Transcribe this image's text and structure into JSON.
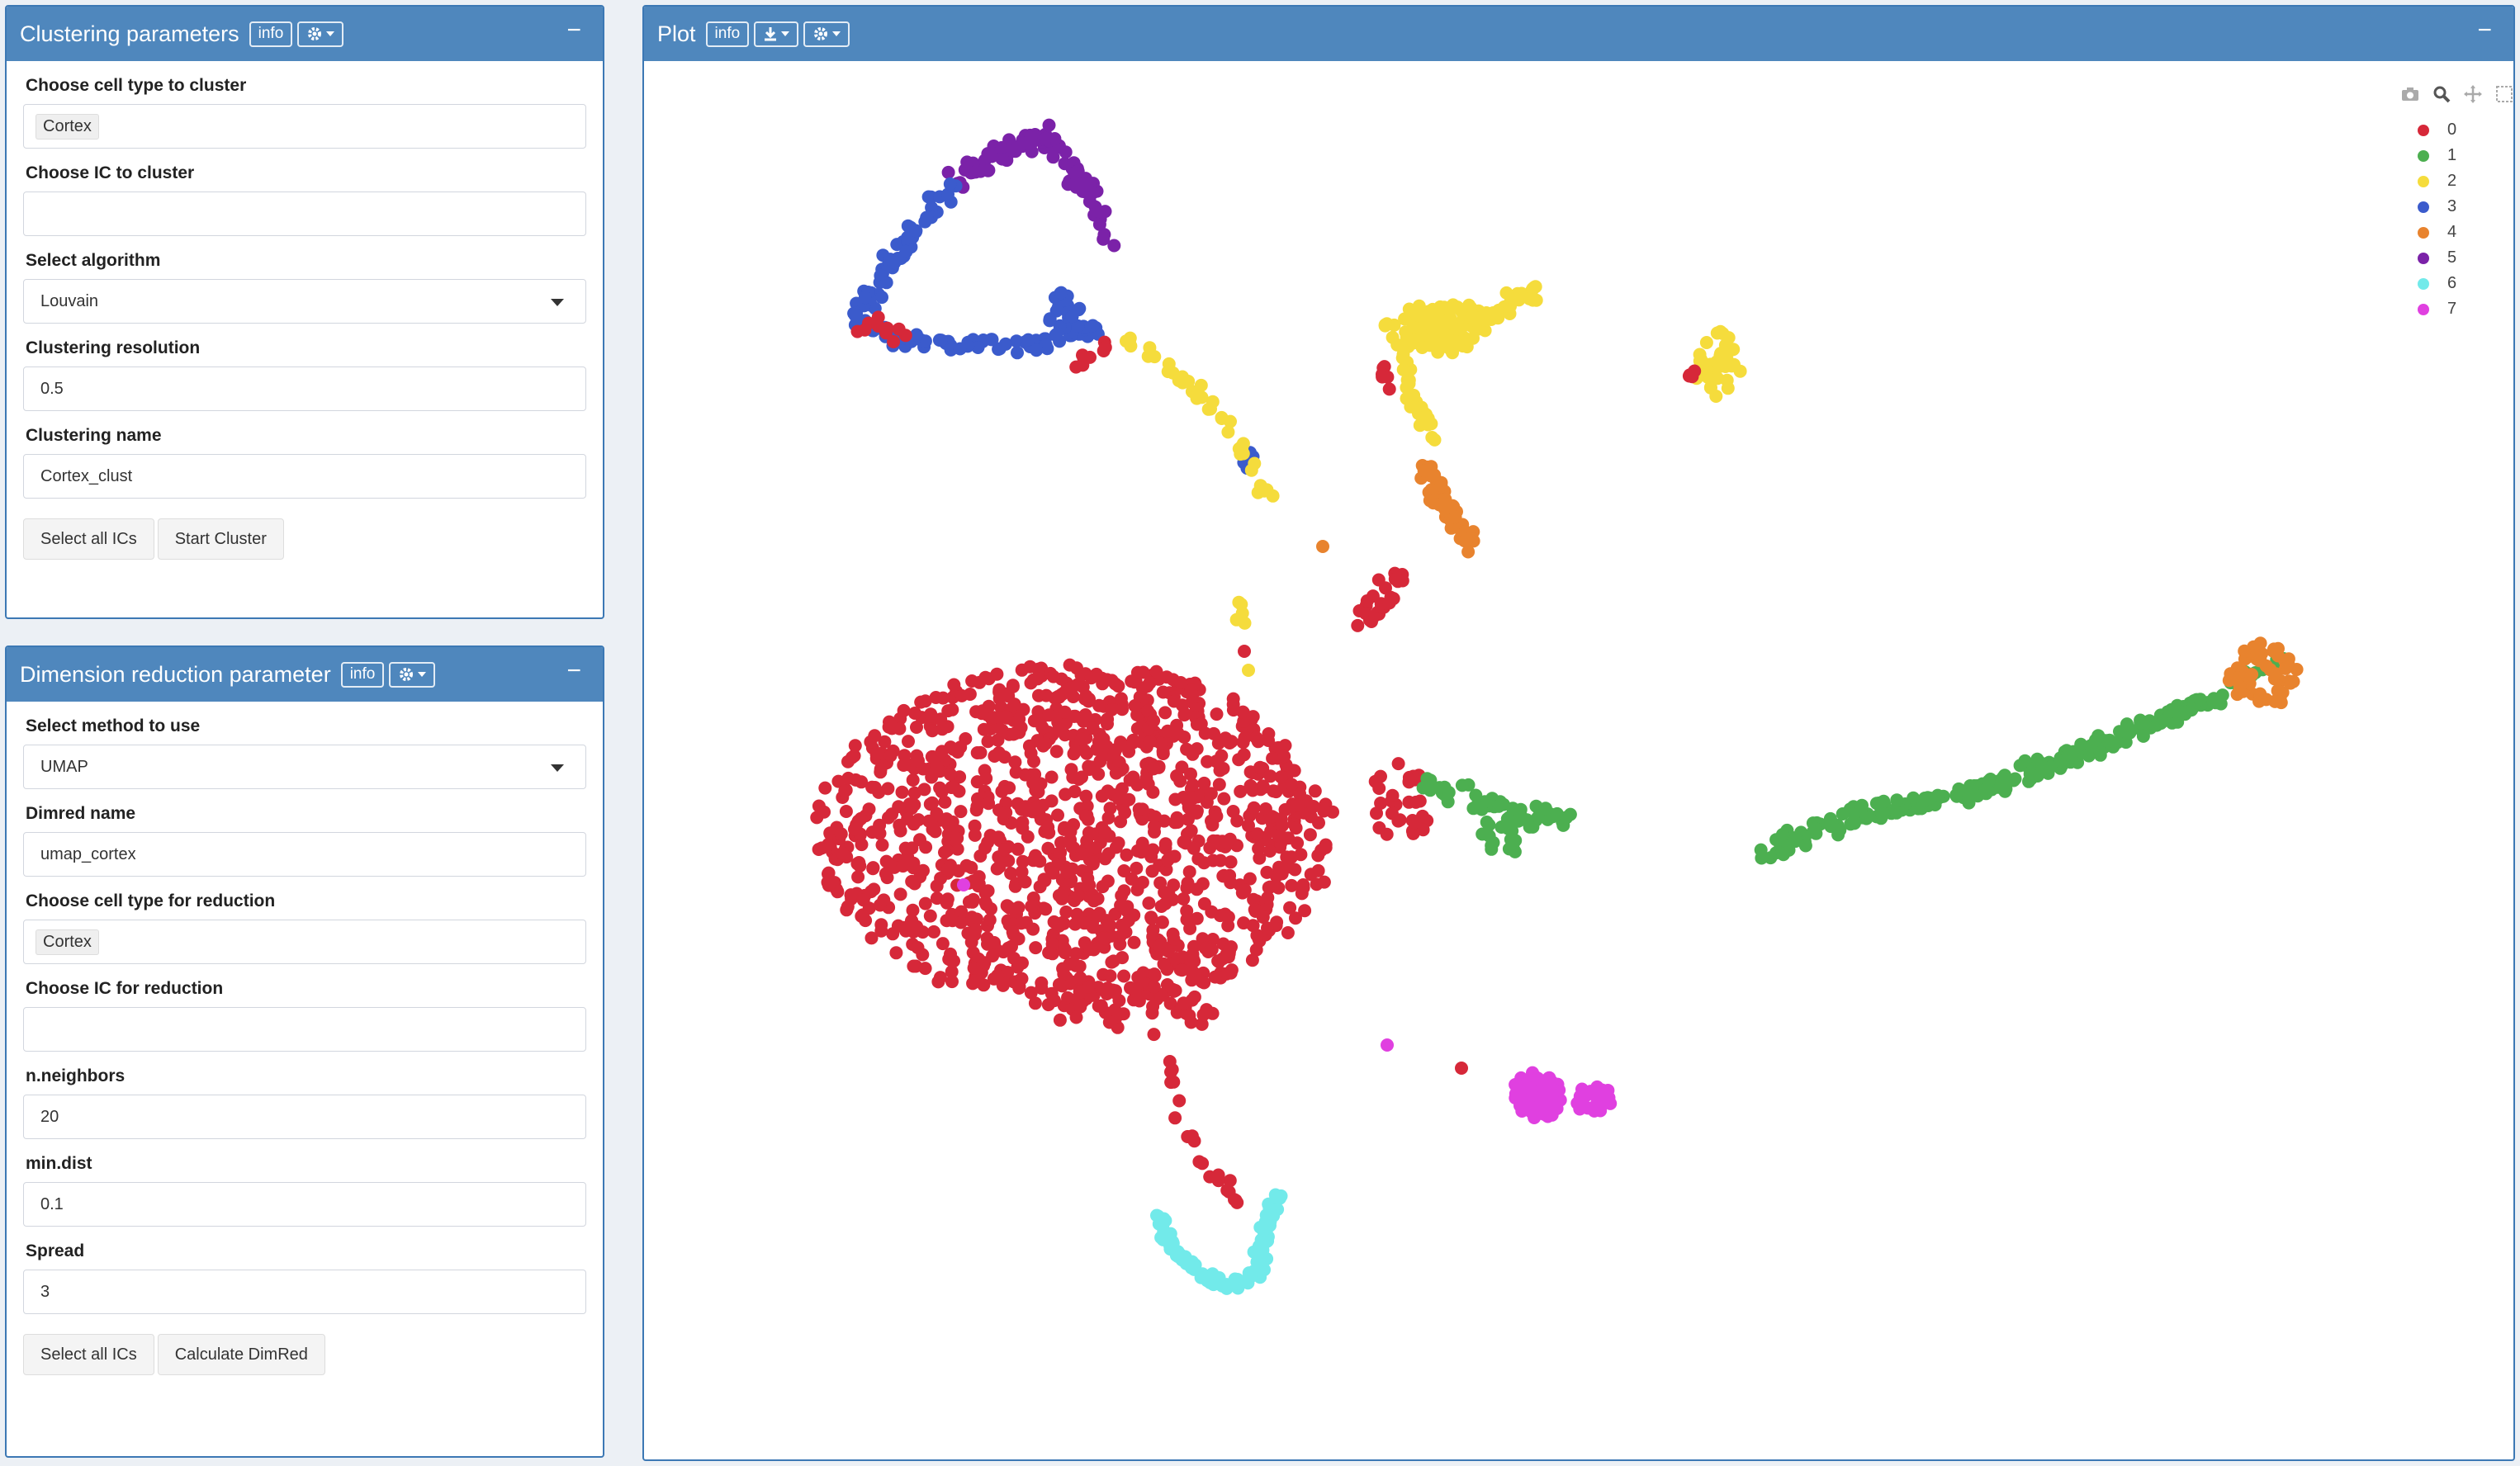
{
  "clustering": {
    "title": "Clustering parameters",
    "info": "info",
    "collapse": "−",
    "fields": {
      "cell_type_label": "Choose cell type to cluster",
      "cell_type_value": "Cortex",
      "ic_label": "Choose IC to cluster",
      "ic_value": "",
      "algorithm_label": "Select algorithm",
      "algorithm_value": "Louvain",
      "resolution_label": "Clustering resolution",
      "resolution_value": "0.5",
      "name_label": "Clustering name",
      "name_value": "Cortex_clust"
    },
    "buttons": {
      "select_all": "Select all ICs",
      "start": "Start Cluster"
    }
  },
  "dimred": {
    "title": "Dimension reduction parameter",
    "info": "info",
    "collapse": "−",
    "fields": {
      "method_label": "Select method to use",
      "method_value": "UMAP",
      "name_label": "Dimred name",
      "name_value": "umap_cortex",
      "cell_type_label": "Choose cell type for reduction",
      "cell_type_value": "Cortex",
      "ic_label": "Choose IC for reduction",
      "ic_value": "",
      "neighbors_label": "n.neighbors",
      "neighbors_value": "20",
      "mindist_label": "min.dist",
      "mindist_value": "0.1",
      "spread_label": "Spread",
      "spread_value": "3"
    },
    "buttons": {
      "select_all": "Select all ICs",
      "calculate": "Calculate DimRed"
    }
  },
  "plot": {
    "title": "Plot",
    "info": "info",
    "collapse": "−",
    "modebar": [
      "camera-icon",
      "zoom-icon",
      "pan-icon",
      "box-select-icon",
      "lasso-icon",
      "zoom-in-icon",
      "zoom-out-icon",
      "autoscale-icon",
      "home-icon",
      "hover-closest-icon",
      "hover-compare-icon",
      "plotly-logo-icon"
    ]
  },
  "chart_data": {
    "type": "scatter",
    "title": "",
    "xlabel": "",
    "ylabel": "",
    "grid": false,
    "legend_placement": "top-right",
    "series": [
      {
        "name": "0",
        "color": "#d62839"
      },
      {
        "name": "1",
        "color": "#4caf50"
      },
      {
        "name": "2",
        "color": "#f5dc3c"
      },
      {
        "name": "3",
        "color": "#3b5bcc"
      },
      {
        "name": "4",
        "color": "#e8832e"
      },
      {
        "name": "5",
        "color": "#7b22a8"
      },
      {
        "name": "6",
        "color": "#72eaea"
      },
      {
        "name": "7",
        "color": "#e040e0"
      }
    ]
  }
}
